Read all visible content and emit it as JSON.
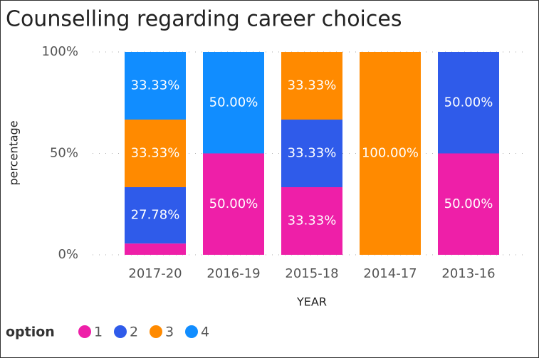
{
  "chart_data": {
    "type": "stacked_bar_100",
    "title": "Counselling regarding career choices",
    "xlabel": "YEAR",
    "ylabel": "percentage",
    "legend_title": "option",
    "categories": [
      "2017-20",
      "2016-19",
      "2015-18",
      "2014-17",
      "2013-16"
    ],
    "series": [
      {
        "name": "1",
        "color": "#ee1fa8",
        "values": [
          5.56,
          50,
          33.33,
          null,
          50
        ],
        "value_labels": [
          null,
          "50.00%",
          "33.33%",
          null,
          "50.00%"
        ]
      },
      {
        "name": "2",
        "color": "#2f5bea",
        "values": [
          27.78,
          null,
          33.33,
          null,
          50
        ],
        "value_labels": [
          "27.78%",
          null,
          "33.33%",
          null,
          "50.00%"
        ]
      },
      {
        "name": "3",
        "color": "#ff8a00",
        "values": [
          33.33,
          null,
          33.33,
          100,
          null
        ],
        "value_labels": [
          "33.33%",
          null,
          "33.33%",
          "100.00%",
          null
        ]
      },
      {
        "name": "4",
        "color": "#118dff",
        "values": [
          33.33,
          50,
          null,
          null,
          null
        ],
        "value_labels": [
          "33.33%",
          "50.00%",
          null,
          null,
          null
        ]
      }
    ],
    "ylim": [
      0,
      100
    ],
    "yticks": [
      {
        "value": 0,
        "label": "0%"
      },
      {
        "value": 50,
        "label": "50%"
      },
      {
        "value": 100,
        "label": "100%"
      }
    ],
    "grid": true
  }
}
